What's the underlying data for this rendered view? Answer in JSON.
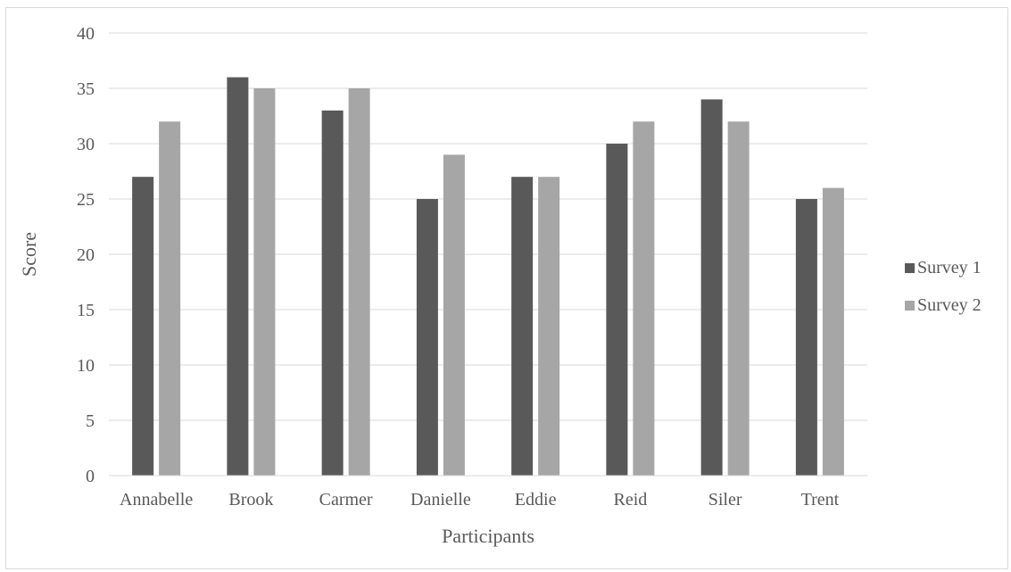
{
  "chart_data": {
    "type": "bar",
    "categories": [
      "Annabelle",
      "Brook",
      "Carmer",
      "Danielle",
      "Eddie",
      "Reid",
      "Siler",
      "Trent"
    ],
    "series": [
      {
        "name": "Survey 1",
        "values": [
          27,
          36,
          33,
          25,
          27,
          30,
          34,
          25
        ],
        "color": "#595959"
      },
      {
        "name": "Survey 2",
        "values": [
          32,
          35,
          35,
          29,
          27,
          32,
          32,
          26
        ],
        "color": "#a6a6a6"
      }
    ],
    "xlabel": "Participants",
    "ylabel": "Score",
    "ylim": [
      0,
      40
    ],
    "yticks": [
      0,
      5,
      10,
      15,
      20,
      25,
      30,
      35,
      40
    ],
    "grid": true,
    "legend_position": "right"
  }
}
